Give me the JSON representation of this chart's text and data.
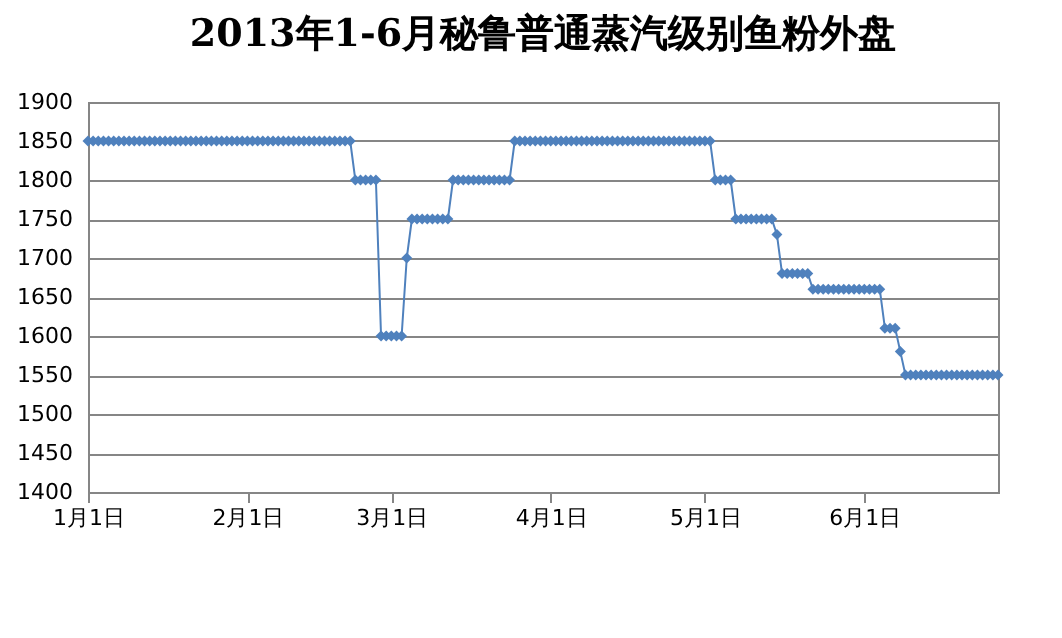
{
  "chart_data": {
    "type": "line",
    "title": "2013年1-6月秘鲁普通蒸汽级别鱼粉外盘",
    "x": [
      "2013-01-01",
      "2013-01-02",
      "2013-01-03",
      "2013-01-04",
      "2013-01-05",
      "2013-01-06",
      "2013-01-07",
      "2013-01-08",
      "2013-01-09",
      "2013-01-10",
      "2013-01-11",
      "2013-01-12",
      "2013-01-13",
      "2013-01-14",
      "2013-01-15",
      "2013-01-16",
      "2013-01-17",
      "2013-01-18",
      "2013-01-19",
      "2013-01-20",
      "2013-01-21",
      "2013-01-22",
      "2013-01-23",
      "2013-01-24",
      "2013-01-25",
      "2013-01-26",
      "2013-01-27",
      "2013-01-28",
      "2013-01-29",
      "2013-01-30",
      "2013-01-31",
      "2013-02-01",
      "2013-02-02",
      "2013-02-03",
      "2013-02-04",
      "2013-02-05",
      "2013-02-06",
      "2013-02-07",
      "2013-02-08",
      "2013-02-09",
      "2013-02-10",
      "2013-02-11",
      "2013-02-12",
      "2013-02-13",
      "2013-02-14",
      "2013-02-15",
      "2013-02-16",
      "2013-02-17",
      "2013-02-18",
      "2013-02-19",
      "2013-02-20",
      "2013-02-21",
      "2013-02-22",
      "2013-02-23",
      "2013-02-24",
      "2013-02-25",
      "2013-02-26",
      "2013-02-27",
      "2013-02-28",
      "2013-03-01",
      "2013-03-02",
      "2013-03-03",
      "2013-03-04",
      "2013-03-05",
      "2013-03-06",
      "2013-03-07",
      "2013-03-08",
      "2013-03-09",
      "2013-03-10",
      "2013-03-11",
      "2013-03-12",
      "2013-03-13",
      "2013-03-14",
      "2013-03-15",
      "2013-03-16",
      "2013-03-17",
      "2013-03-18",
      "2013-03-19",
      "2013-03-20",
      "2013-03-21",
      "2013-03-22",
      "2013-03-23",
      "2013-03-24",
      "2013-03-25",
      "2013-03-26",
      "2013-03-27",
      "2013-03-28",
      "2013-03-29",
      "2013-03-30",
      "2013-03-31",
      "2013-04-01",
      "2013-04-02",
      "2013-04-03",
      "2013-04-04",
      "2013-04-05",
      "2013-04-06",
      "2013-04-07",
      "2013-04-08",
      "2013-04-09",
      "2013-04-10",
      "2013-04-11",
      "2013-04-12",
      "2013-04-13",
      "2013-04-14",
      "2013-04-15",
      "2013-04-16",
      "2013-04-17",
      "2013-04-18",
      "2013-04-19",
      "2013-04-20",
      "2013-04-21",
      "2013-04-22",
      "2013-04-23",
      "2013-04-24",
      "2013-04-25",
      "2013-04-26",
      "2013-04-27",
      "2013-04-28",
      "2013-04-29",
      "2013-04-30",
      "2013-05-01",
      "2013-05-02",
      "2013-05-03",
      "2013-05-04",
      "2013-05-05",
      "2013-05-06",
      "2013-05-07",
      "2013-05-08",
      "2013-05-09",
      "2013-05-10",
      "2013-05-11",
      "2013-05-12",
      "2013-05-13",
      "2013-05-14",
      "2013-05-15",
      "2013-05-16",
      "2013-05-17",
      "2013-05-18",
      "2013-05-19",
      "2013-05-20",
      "2013-05-21",
      "2013-05-22",
      "2013-05-23",
      "2013-05-24",
      "2013-05-25",
      "2013-05-26",
      "2013-05-27",
      "2013-05-28",
      "2013-05-29",
      "2013-05-30",
      "2013-05-31",
      "2013-06-01",
      "2013-06-02",
      "2013-06-03",
      "2013-06-04",
      "2013-06-05",
      "2013-06-06",
      "2013-06-07",
      "2013-06-08",
      "2013-06-09",
      "2013-06-10",
      "2013-06-11",
      "2013-06-12",
      "2013-06-13",
      "2013-06-14",
      "2013-06-15",
      "2013-06-16",
      "2013-06-17",
      "2013-06-18",
      "2013-06-19",
      "2013-06-20",
      "2013-06-21",
      "2013-06-22",
      "2013-06-23",
      "2013-06-24",
      "2013-06-25",
      "2013-06-26",
      "2013-06-27"
    ],
    "series": [
      {
        "color": "#4f81bd",
        "values": [
          1850,
          1850,
          1850,
          1850,
          1850,
          1850,
          1850,
          1850,
          1850,
          1850,
          1850,
          1850,
          1850,
          1850,
          1850,
          1850,
          1850,
          1850,
          1850,
          1850,
          1850,
          1850,
          1850,
          1850,
          1850,
          1850,
          1850,
          1850,
          1850,
          1850,
          1850,
          1850,
          1850,
          1850,
          1850,
          1850,
          1850,
          1850,
          1850,
          1850,
          1850,
          1850,
          1850,
          1850,
          1850,
          1850,
          1850,
          1850,
          1850,
          1850,
          1850,
          1850,
          1800,
          1800,
          1800,
          1800,
          1800,
          1600,
          1600,
          1600,
          1600,
          1600,
          1700,
          1750,
          1750,
          1750,
          1750,
          1750,
          1750,
          1750,
          1750,
          1800,
          1800,
          1800,
          1800,
          1800,
          1800,
          1800,
          1800,
          1800,
          1800,
          1800,
          1800,
          1850,
          1850,
          1850,
          1850,
          1850,
          1850,
          1850,
          1850,
          1850,
          1850,
          1850,
          1850,
          1850,
          1850,
          1850,
          1850,
          1850,
          1850,
          1850,
          1850,
          1850,
          1850,
          1850,
          1850,
          1850,
          1850,
          1850,
          1850,
          1850,
          1850,
          1850,
          1850,
          1850,
          1850,
          1850,
          1850,
          1850,
          1850,
          1850,
          1800,
          1800,
          1800,
          1800,
          1750,
          1750,
          1750,
          1750,
          1750,
          1750,
          1750,
          1750,
          1730,
          1680,
          1680,
          1680,
          1680,
          1680,
          1680,
          1660,
          1660,
          1660,
          1660,
          1660,
          1660,
          1660,
          1660,
          1660,
          1660,
          1660,
          1660,
          1660,
          1660,
          1610,
          1610,
          1610,
          1580,
          1550,
          1550,
          1550,
          1550,
          1550,
          1550,
          1550,
          1550,
          1550,
          1550,
          1550,
          1550,
          1550,
          1550,
          1550,
          1550,
          1550,
          1550,
          1550
        ]
      }
    ],
    "xlim": [
      "2013-01-01",
      "2013-06-27"
    ],
    "xticks": [
      {
        "value": "2013-01-01",
        "label": "1月1日"
      },
      {
        "value": "2013-02-01",
        "label": "2月1日"
      },
      {
        "value": "2013-03-01",
        "label": "3月1日"
      },
      {
        "value": "2013-04-01",
        "label": "4月1日"
      },
      {
        "value": "2013-05-01",
        "label": "5月1日"
      },
      {
        "value": "2013-06-01",
        "label": "6月1日"
      }
    ],
    "ylim": [
      1400,
      1900
    ],
    "yticks": [
      1400,
      1450,
      1500,
      1550,
      1600,
      1650,
      1700,
      1750,
      1800,
      1850,
      1900
    ],
    "grid": "y",
    "marker": "diamond",
    "line_style": "solid"
  }
}
